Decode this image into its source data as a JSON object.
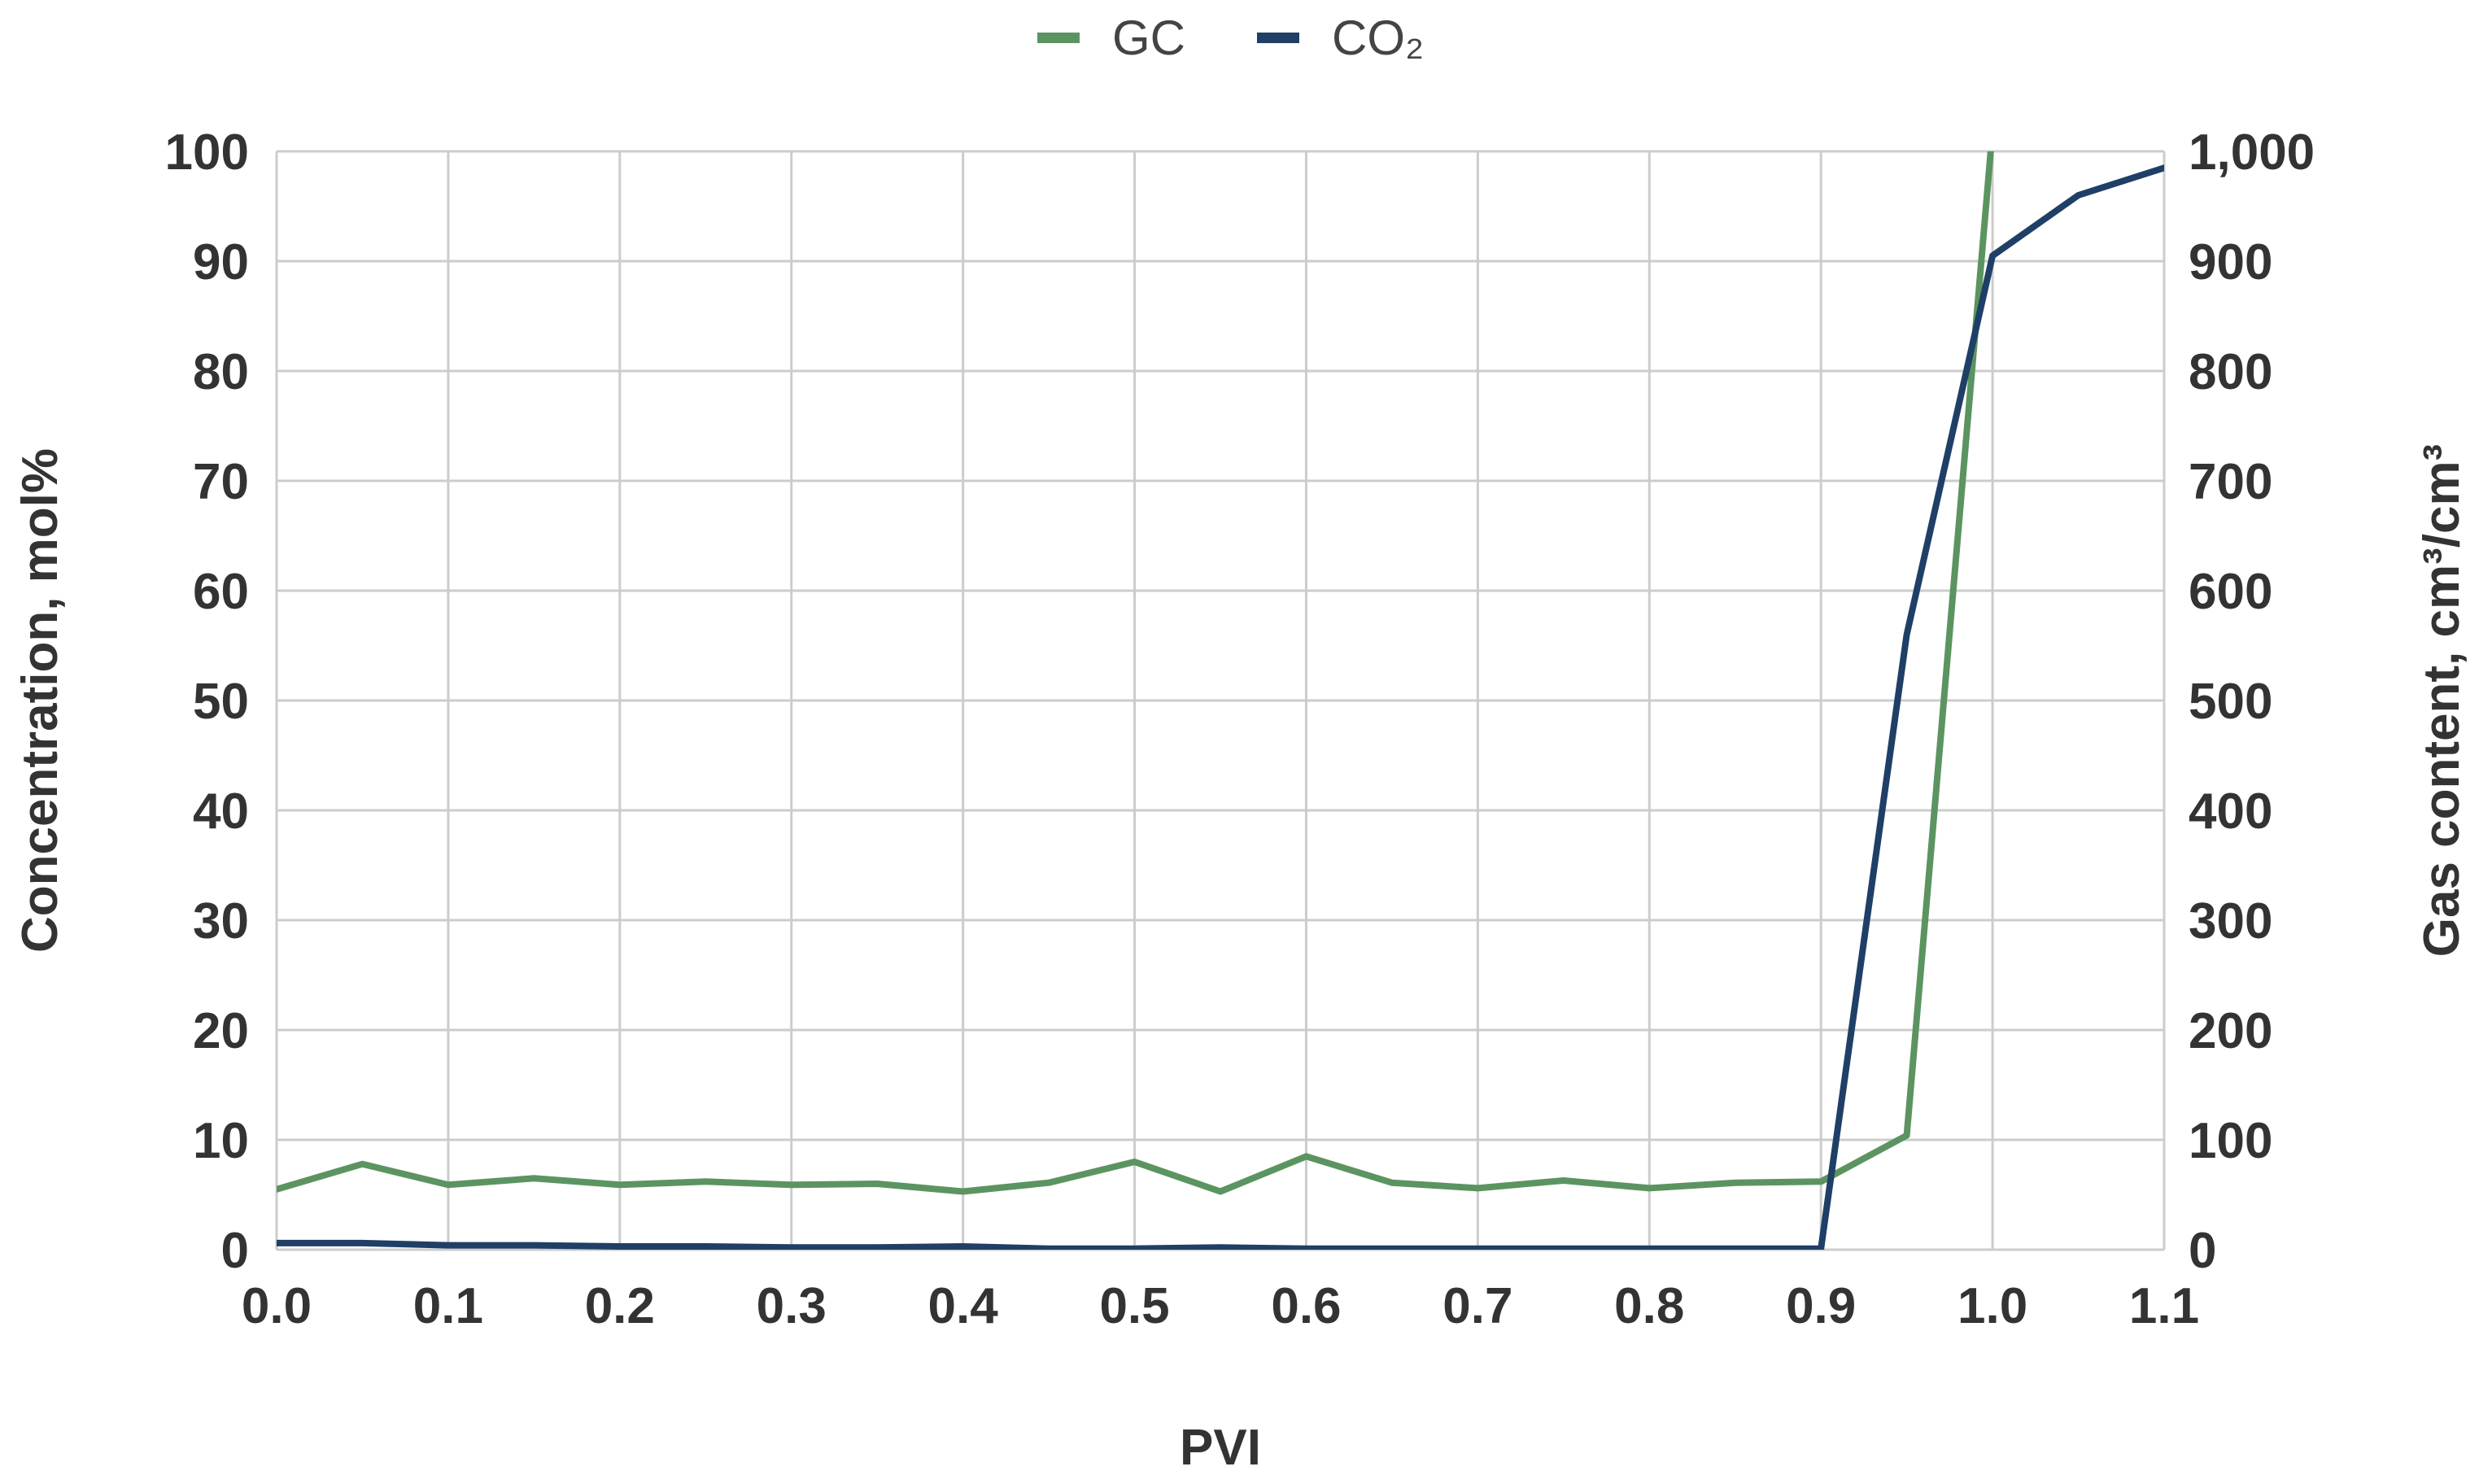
{
  "chart_data": {
    "type": "line",
    "xlabel": "PVI",
    "ylabel": "Concentration, mol%",
    "y2label": "Gas content, cm³/cm³",
    "xlim": [
      0.0,
      1.1
    ],
    "ylim": [
      0,
      100
    ],
    "y2lim": [
      0,
      1000
    ],
    "x_ticks": [
      "0.0",
      "0.1",
      "0.2",
      "0.3",
      "0.4",
      "0.5",
      "0.6",
      "0.7",
      "0.8",
      "0.9",
      "1.0",
      "1.1"
    ],
    "y_ticks": [
      "0",
      "10",
      "20",
      "30",
      "40",
      "50",
      "60",
      "70",
      "80",
      "90",
      "100"
    ],
    "y2_ticks": [
      "0",
      "100",
      "200",
      "300",
      "400",
      "500",
      "600",
      "700",
      "800",
      "900",
      "1,000"
    ],
    "grid": true,
    "legend_position": "top-center",
    "series": [
      {
        "name": "GC",
        "axis": "right",
        "color": "#5b9461",
        "x": [
          0.0,
          0.05,
          0.1,
          0.15,
          0.2,
          0.25,
          0.3,
          0.35,
          0.4,
          0.45,
          0.5,
          0.55,
          0.6,
          0.65,
          0.7,
          0.75,
          0.8,
          0.85,
          0.9,
          0.95,
          1.0
        ],
        "values": [
          55,
          78,
          59,
          65,
          59,
          62,
          59,
          60,
          53,
          61,
          80,
          53,
          85,
          61,
          56,
          63,
          56,
          61,
          62,
          104,
          1020
        ]
      },
      {
        "name": "CO₂",
        "axis": "left",
        "color": "#1f3f66",
        "x": [
          0.0,
          0.05,
          0.1,
          0.15,
          0.2,
          0.25,
          0.3,
          0.35,
          0.4,
          0.45,
          0.5,
          0.55,
          0.6,
          0.65,
          0.7,
          0.75,
          0.8,
          0.85,
          0.9,
          0.95,
          1.0,
          1.05,
          1.1
        ],
        "values": [
          0.6,
          0.6,
          0.4,
          0.4,
          0.3,
          0.3,
          0.2,
          0.2,
          0.3,
          0.1,
          0.1,
          0.2,
          0.1,
          0.1,
          0.1,
          0.1,
          0.1,
          0.1,
          0.1,
          56,
          90.5,
          96,
          98.5
        ]
      }
    ]
  }
}
